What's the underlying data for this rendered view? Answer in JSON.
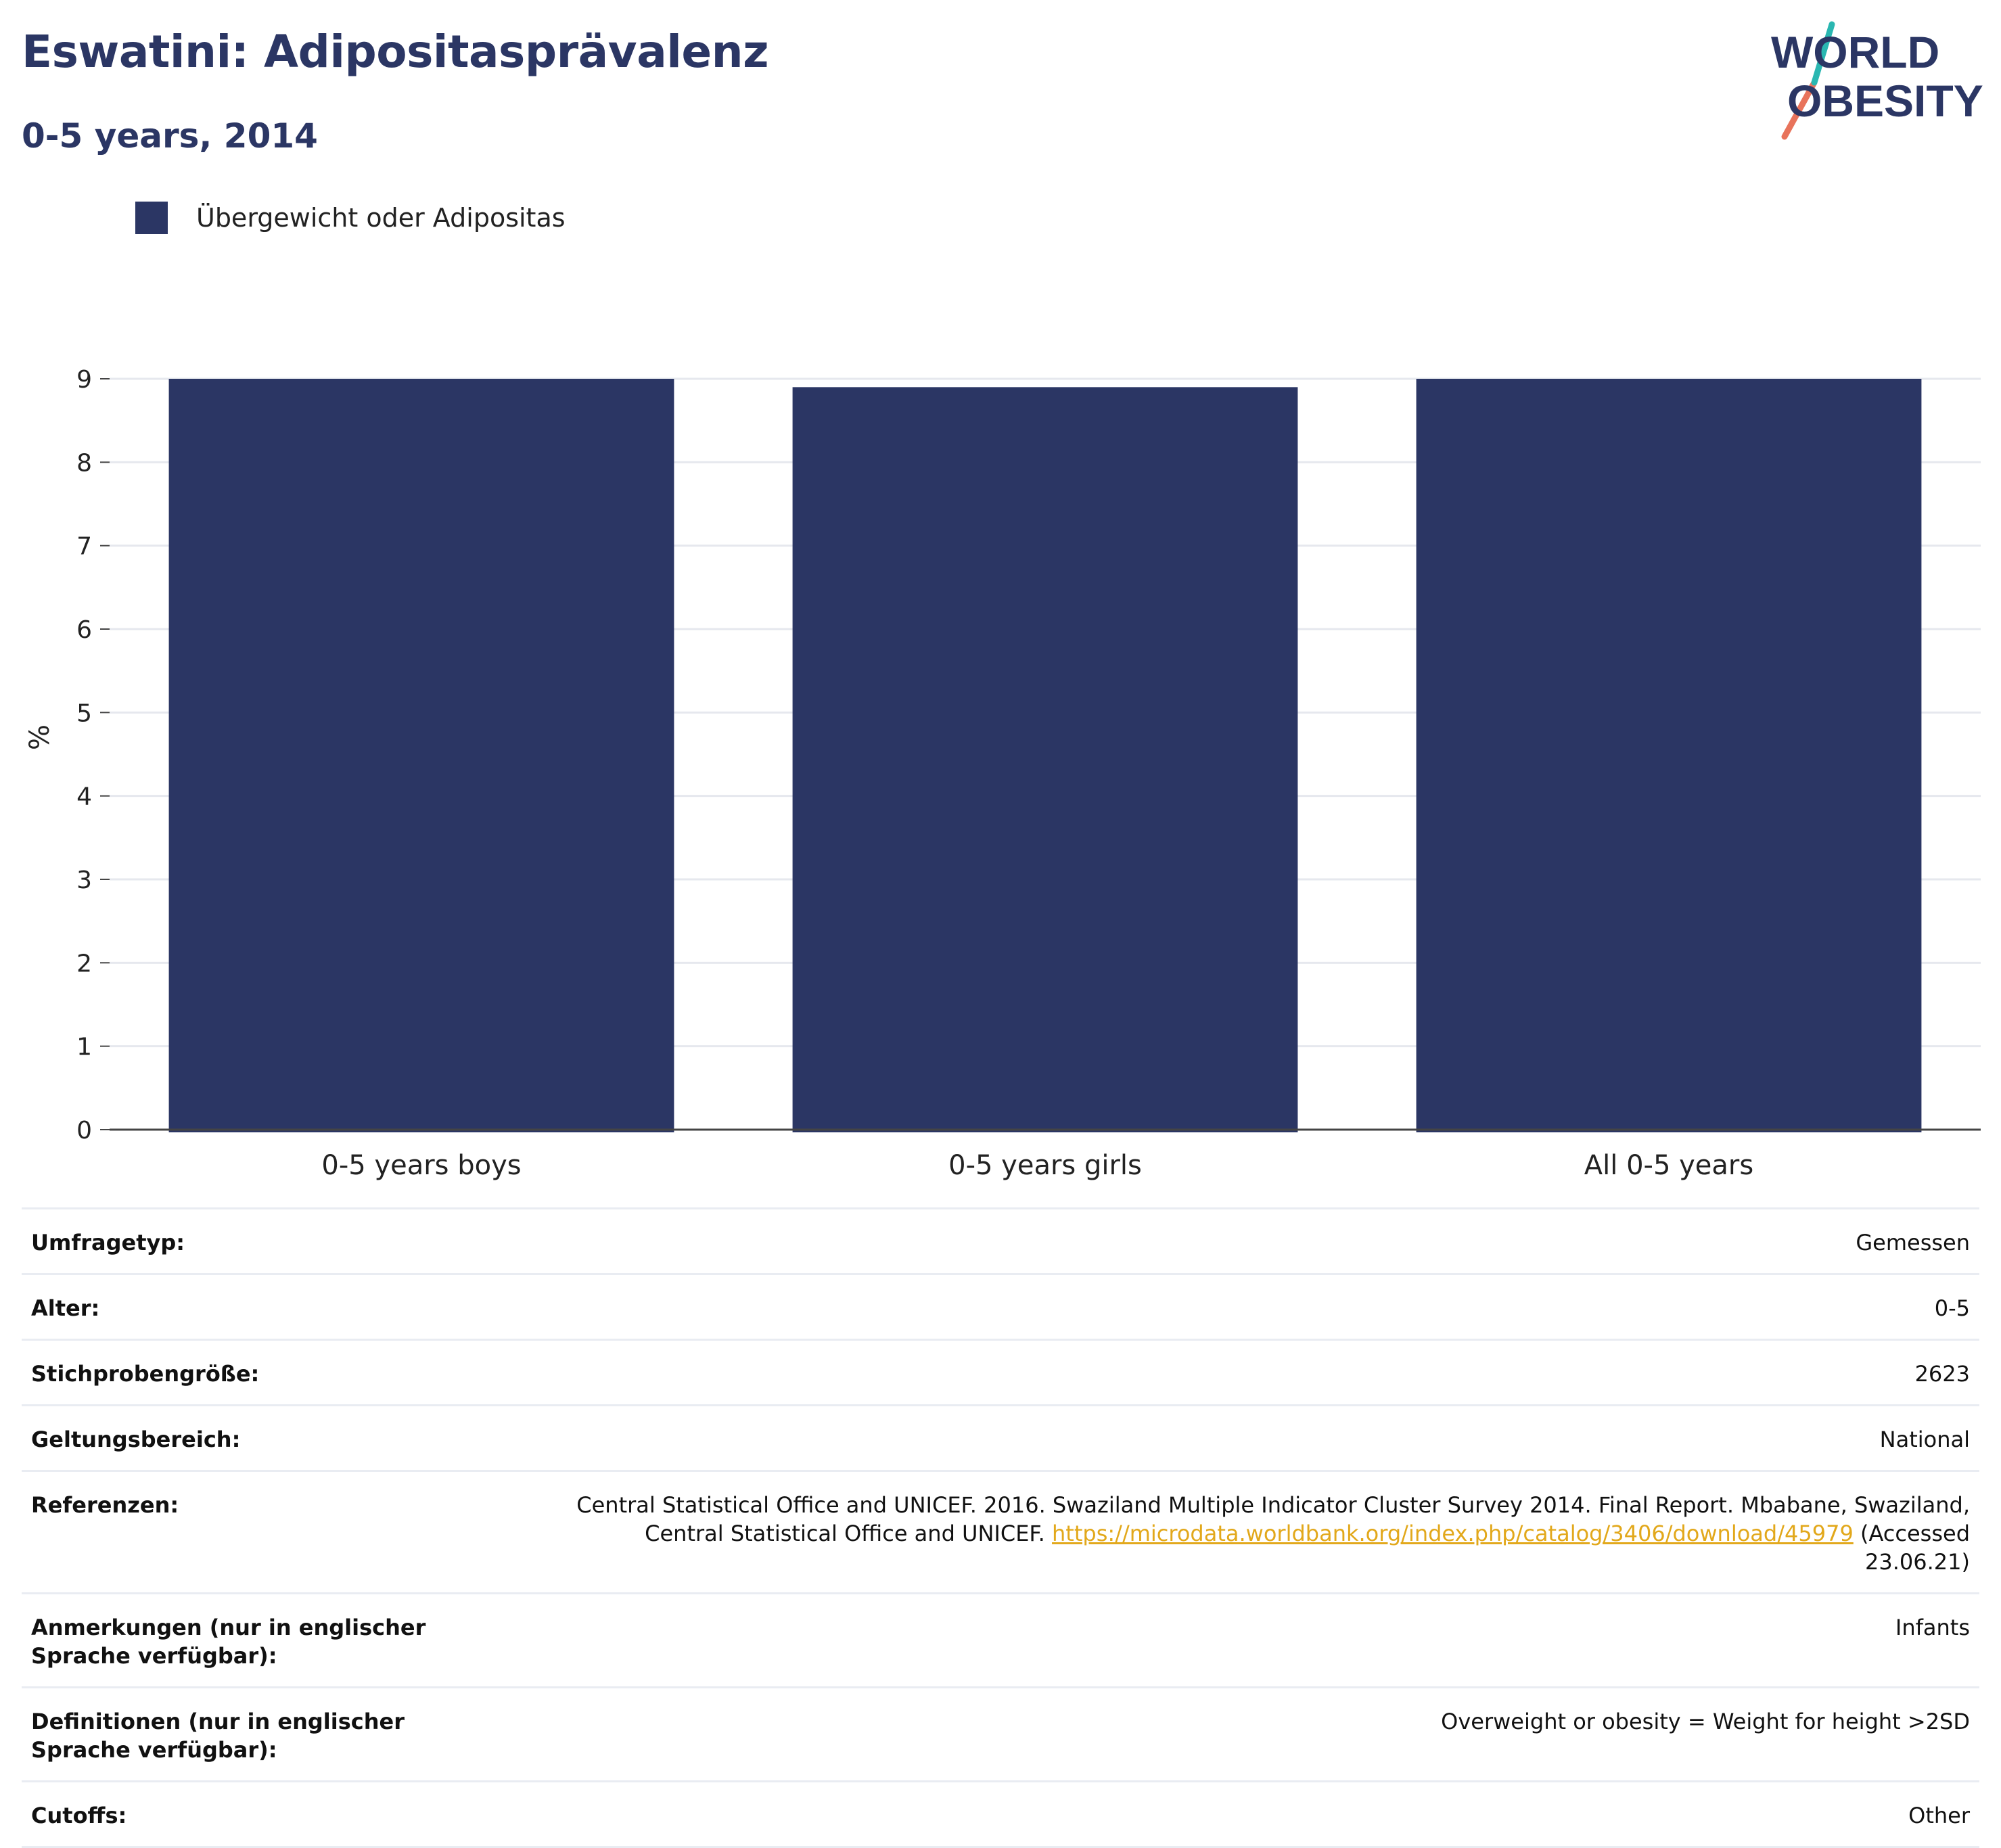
{
  "header": {
    "title": "Eswatini: Adipositasprävalenz",
    "subtitle": "0-5 years, 2014"
  },
  "logo": {
    "line1": "WORLD",
    "line2": "OBESITY",
    "colors": {
      "text": "#2b3664",
      "slash_top": "#2ab7b1",
      "slash_bottom": "#e8735b"
    }
  },
  "legend": {
    "label": "Übergewicht oder Adipositas",
    "color": "#2b3664"
  },
  "chart_data": {
    "type": "bar",
    "categories": [
      "0-5 years boys",
      "0-5 years girls",
      "All 0-5 years"
    ],
    "series": [
      {
        "name": "Übergewicht oder Adipositas",
        "values": [
          9.0,
          8.9,
          9.0
        ],
        "color": "#2b3664"
      }
    ],
    "ylabel": "%",
    "xlabel": "",
    "ylim": [
      0,
      9
    ],
    "yticks": [
      "0",
      "1",
      "2",
      "3",
      "4",
      "5",
      "6",
      "7",
      "8",
      "9"
    ],
    "grid": true,
    "legend_position": "top-left"
  },
  "meta": {
    "rows": [
      {
        "key": "Umfragetyp:",
        "value": "Gemessen"
      },
      {
        "key": "Alter:",
        "value": "0-5"
      },
      {
        "key": "Stichprobengröße:",
        "value": "2623"
      },
      {
        "key": "Geltungsbereich:",
        "value": "National"
      },
      {
        "key": "Referenzen:",
        "value": "Central Statistical Office and UNICEF. 2016. Swaziland Multiple Indicator Cluster Survey 2014. Final Report. Mbabane, Swaziland, Central Statistical Office and UNICEF.",
        "link": "https://microdata.worldbank.org/index.php/catalog/3406/download/45979",
        "suffix": "(Accessed 23.06.21)"
      },
      {
        "key": "Anmerkungen (nur in englischer Sprache verfügbar):",
        "value": "Infants"
      },
      {
        "key": "Definitionen (nur in englischer Sprache verfügbar):",
        "value": "Overweight or obesity = Weight for height >2SD"
      },
      {
        "key": "Cutoffs:",
        "value": "Other"
      }
    ]
  }
}
